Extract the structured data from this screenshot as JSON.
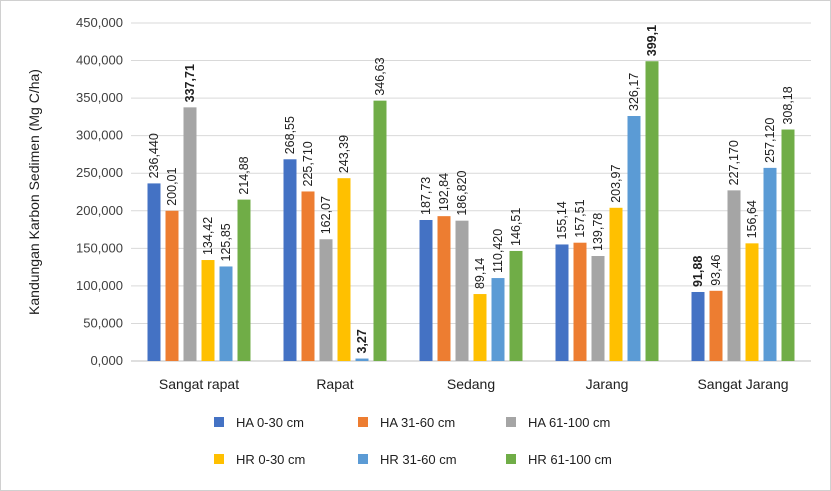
{
  "chart_data": {
    "type": "bar",
    "ylabel": "Kandungan Karbon Sedimen (Mg C/ha)",
    "xlabel": "",
    "ylim": [
      0,
      450000
    ],
    "ytick_labels": [
      "0,000",
      "50,000",
      "100,000",
      "150,000",
      "200,000",
      "250,000",
      "300,000",
      "350,000",
      "400,000",
      "450,000"
    ],
    "grid": true,
    "legend_position": "bottom",
    "categories": [
      "Sangat rapat",
      "Rapat",
      "Sedang",
      "Jarang",
      "Sangat Jarang"
    ],
    "series": [
      {
        "name": "HA 0-30 cm",
        "color": "#4472C4",
        "values": [
          236440,
          268550,
          187730,
          155140,
          91880
        ],
        "labels": [
          "236,440",
          "268,55",
          "187,73",
          "155,14",
          "91,88"
        ],
        "label_colors": [
          "#202020",
          "#202020",
          "#202020",
          "#202020",
          "#FF0000"
        ]
      },
      {
        "name": "HA 31-60 cm",
        "color": "#ED7D31",
        "values": [
          200010,
          225710,
          192840,
          157510,
          93460
        ],
        "labels": [
          "200,01",
          "225,710",
          "192,84",
          "157,51",
          "93,46"
        ],
        "label_colors": [
          "#202020",
          "#202020",
          "#202020",
          "#202020",
          "#202020"
        ]
      },
      {
        "name": "HA 61-100 cm",
        "color": "#A5A5A5",
        "values": [
          337710,
          162070,
          186820,
          139780,
          227170
        ],
        "labels": [
          "337,71",
          "162,07",
          "186,820",
          "139,78",
          "227,170"
        ],
        "label_colors": [
          "#FF0000",
          "#202020",
          "#202020",
          "#202020",
          "#202020"
        ]
      },
      {
        "name": "HR 0-30 cm",
        "color": "#FFC000",
        "values": [
          134420,
          243390,
          89140,
          203970,
          156640
        ],
        "labels": [
          "134,42",
          "243,39",
          "89,14",
          "203,97",
          "156,64"
        ],
        "label_colors": [
          "#202020",
          "#202020",
          "#202020",
          "#202020",
          "#202020"
        ]
      },
      {
        "name": "HR 31-60 cm",
        "color": "#5B9BD5",
        "values": [
          125850,
          3270,
          110420,
          326170,
          257120
        ],
        "labels": [
          "125,85",
          "3,27",
          "110,420",
          "326,17",
          "257,120"
        ],
        "label_colors": [
          "#202020",
          "#00B050",
          "#202020",
          "#202020",
          "#202020"
        ]
      },
      {
        "name": "HR 61-100 cm",
        "color": "#70AD47",
        "values": [
          214880,
          346630,
          146510,
          399100,
          308180
        ],
        "labels": [
          "214,88",
          "346,63",
          "146,51",
          "399,1",
          "308,18"
        ],
        "label_colors": [
          "#202020",
          "#202020",
          "#202020",
          "#00B050",
          "#202020"
        ]
      }
    ]
  }
}
